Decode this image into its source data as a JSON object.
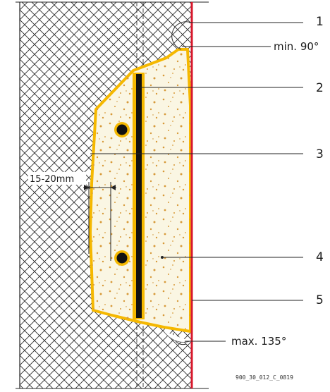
{
  "callouts": [
    {
      "number": "1",
      "note": "min. 90°"
    },
    {
      "number": "2"
    },
    {
      "number": "3"
    },
    {
      "number": "4"
    },
    {
      "number": "5",
      "note": "max. 135°"
    }
  ],
  "dimension": "15-20mm",
  "drawing_code": "900_30_012_C_0819",
  "colors": {
    "hatch": "#2b2b2b",
    "mortar_fill": "#faf6e3",
    "mortar_outline": "#f5b800",
    "speckle": "#d79a3a",
    "facade_line": "#d8182c",
    "core": "#111111",
    "leader": "#222222"
  }
}
